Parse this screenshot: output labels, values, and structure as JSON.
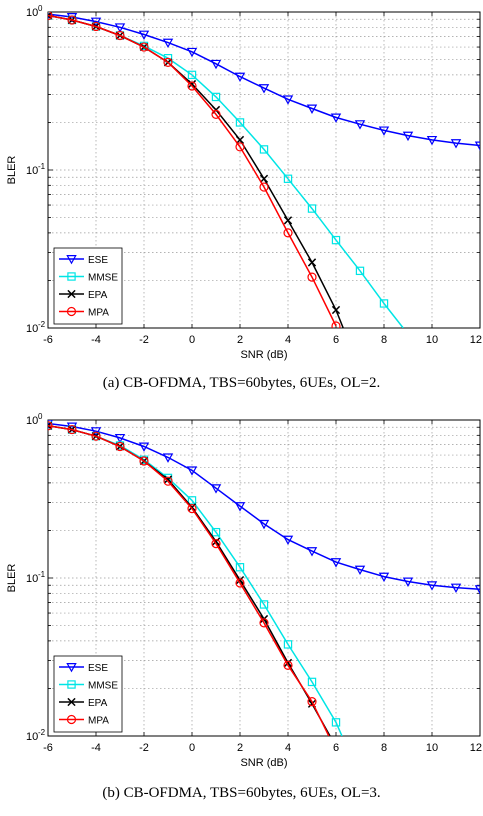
{
  "chart_data": [
    {
      "type": "line",
      "title": "",
      "caption": "(a) CB-OFDMA, TBS=60bytes, 6UEs, OL=2.",
      "xlabel": "SNR (dB)",
      "ylabel": "BLER",
      "xlim": [
        -6,
        12
      ],
      "ylim": [
        0.01,
        1
      ],
      "yscale": "log",
      "grid": true,
      "legend_position": "bottom-left",
      "x_ticks": [
        "-6",
        "-4",
        "-2",
        "0",
        "2",
        "4",
        "6",
        "8",
        "10",
        "12"
      ],
      "y_ticks": [
        {
          "base": "10",
          "exp": "0"
        },
        {
          "base": "10",
          "exp": "-1"
        },
        {
          "base": "10",
          "exp": "-2"
        }
      ],
      "series": [
        {
          "name": "ESE",
          "color": "#0000ff",
          "marker": "triangle-down",
          "x": [
            -6,
            -5,
            -4,
            -3,
            -2,
            -1,
            0,
            1,
            2,
            3,
            4,
            5,
            6,
            7,
            8,
            9,
            10,
            11,
            12
          ],
          "y": [
            0.97,
            0.93,
            0.87,
            0.8,
            0.72,
            0.64,
            0.56,
            0.47,
            0.39,
            0.33,
            0.28,
            0.245,
            0.215,
            0.195,
            0.178,
            0.165,
            0.155,
            0.148,
            0.143
          ]
        },
        {
          "name": "MMSE",
          "color": "#00e5e5",
          "marker": "square",
          "x": [
            -6,
            -5,
            -4,
            -3,
            -2,
            -1,
            0,
            1,
            2,
            3,
            4,
            5,
            6,
            7,
            8,
            8.8
          ],
          "y": [
            0.95,
            0.89,
            0.81,
            0.71,
            0.61,
            0.51,
            0.4,
            0.29,
            0.2,
            0.135,
            0.088,
            0.057,
            0.036,
            0.023,
            0.0143,
            0.01
          ]
        },
        {
          "name": "EPA",
          "color": "#000000",
          "marker": "x",
          "x": [
            -6,
            -5,
            -4,
            -3,
            -2,
            -1,
            0,
            1,
            2,
            3,
            4,
            5,
            6,
            6.3
          ],
          "y": [
            0.95,
            0.89,
            0.81,
            0.71,
            0.6,
            0.48,
            0.35,
            0.24,
            0.155,
            0.088,
            0.048,
            0.026,
            0.013,
            0.01
          ]
        },
        {
          "name": "MPA",
          "color": "#ff0000",
          "marker": "circle",
          "x": [
            -6,
            -5,
            -4,
            -3,
            -2,
            -1,
            0,
            1,
            2,
            3,
            4,
            5,
            6
          ],
          "y": [
            0.95,
            0.89,
            0.81,
            0.71,
            0.6,
            0.48,
            0.34,
            0.225,
            0.14,
            0.078,
            0.04,
            0.021,
            0.0103
          ]
        }
      ]
    },
    {
      "type": "line",
      "title": "",
      "caption": "(b) CB-OFDMA, TBS=60bytes, 6UEs, OL=3.",
      "xlabel": "SNR (dB)",
      "ylabel": "BLER",
      "xlim": [
        -6,
        12
      ],
      "ylim": [
        0.01,
        1
      ],
      "yscale": "log",
      "grid": true,
      "legend_position": "bottom-left",
      "x_ticks": [
        "-6",
        "-4",
        "-2",
        "0",
        "2",
        "4",
        "6",
        "8",
        "10",
        "12"
      ],
      "y_ticks": [
        {
          "base": "10",
          "exp": "0"
        },
        {
          "base": "10",
          "exp": "-1"
        },
        {
          "base": "10",
          "exp": "-2"
        }
      ],
      "series": [
        {
          "name": "ESE",
          "color": "#0000ff",
          "marker": "triangle-down",
          "x": [
            -6,
            -5,
            -4,
            -3,
            -2,
            -1,
            0,
            1,
            2,
            3,
            4,
            5,
            6,
            7,
            8,
            9,
            10,
            11,
            12
          ],
          "y": [
            0.95,
            0.91,
            0.85,
            0.77,
            0.68,
            0.58,
            0.48,
            0.37,
            0.285,
            0.22,
            0.175,
            0.148,
            0.126,
            0.113,
            0.102,
            0.095,
            0.09,
            0.087,
            0.085
          ]
        },
        {
          "name": "MMSE",
          "color": "#00e5e5",
          "marker": "square",
          "x": [
            -6,
            -5,
            -4,
            -3,
            -2,
            -1,
            0,
            1,
            2,
            3,
            4,
            5,
            6,
            6.25
          ],
          "y": [
            0.92,
            0.87,
            0.79,
            0.69,
            0.56,
            0.43,
            0.31,
            0.195,
            0.117,
            0.068,
            0.038,
            0.022,
            0.0122,
            0.01
          ]
        },
        {
          "name": "EPA",
          "color": "#000000",
          "marker": "x",
          "x": [
            -6,
            -5,
            -4,
            -3,
            -2,
            -1,
            0,
            1,
            2,
            3,
            4,
            5,
            5.75
          ],
          "y": [
            0.92,
            0.87,
            0.79,
            0.68,
            0.55,
            0.42,
            0.28,
            0.17,
            0.097,
            0.055,
            0.029,
            0.016,
            0.01
          ]
        },
        {
          "name": "MPA",
          "color": "#ff0000",
          "marker": "circle",
          "x": [
            -6,
            -5,
            -4,
            -3,
            -2,
            -1,
            0,
            1,
            2,
            3,
            4,
            5,
            5.7
          ],
          "y": [
            0.92,
            0.87,
            0.79,
            0.68,
            0.55,
            0.41,
            0.275,
            0.165,
            0.093,
            0.052,
            0.028,
            0.0165,
            0.01
          ]
        }
      ]
    }
  ]
}
